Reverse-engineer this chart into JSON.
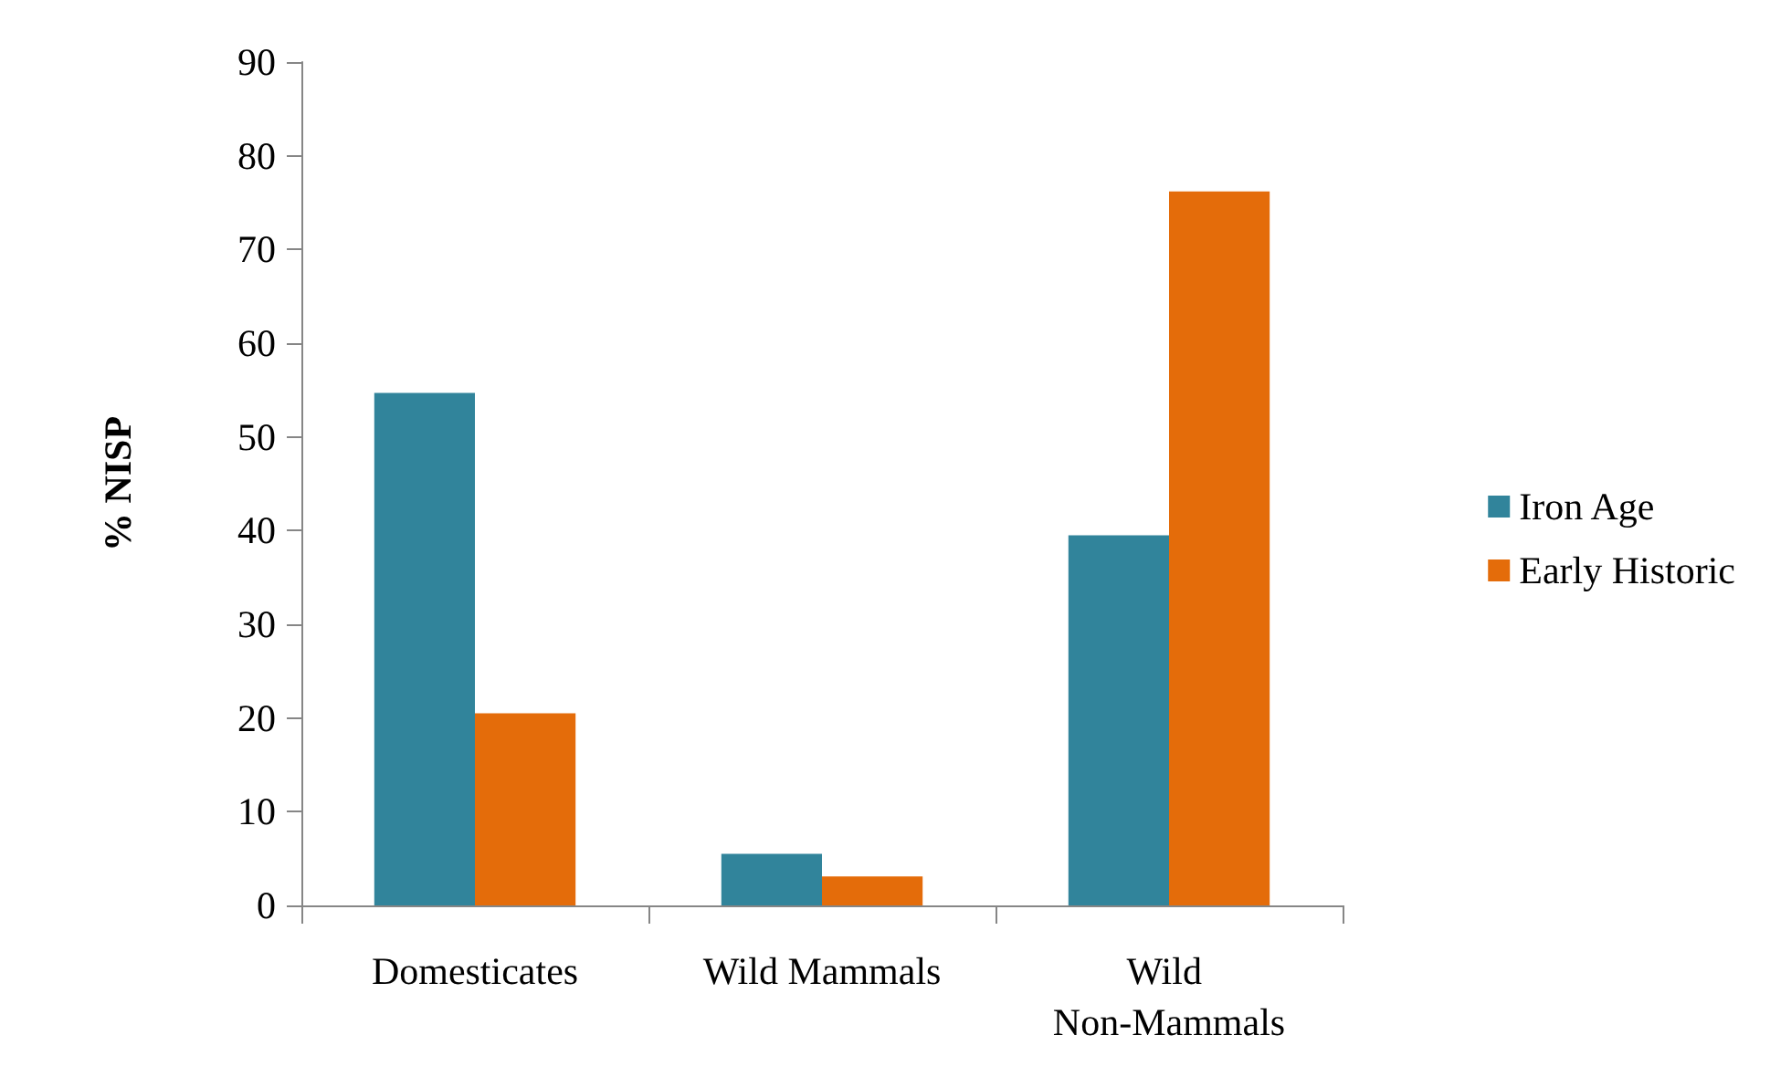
{
  "chart_data": {
    "type": "bar",
    "ylabel": "% NISP",
    "categories": [
      "Domesticates",
      "Wild Mammals",
      "Wild Non-Mammals"
    ],
    "series": [
      {
        "name": "Iron Age",
        "color": "#31849b",
        "values": [
          54.7,
          5.5,
          39.5
        ]
      },
      {
        "name": "Early Historic",
        "color": "#e46c0a",
        "values": [
          20.5,
          3.1,
          76.2
        ]
      }
    ],
    "ylim": [
      0,
      90
    ],
    "yticks": [
      0,
      10,
      20,
      30,
      40,
      50,
      60,
      70,
      80,
      90
    ],
    "grid": false,
    "legend": "right"
  }
}
